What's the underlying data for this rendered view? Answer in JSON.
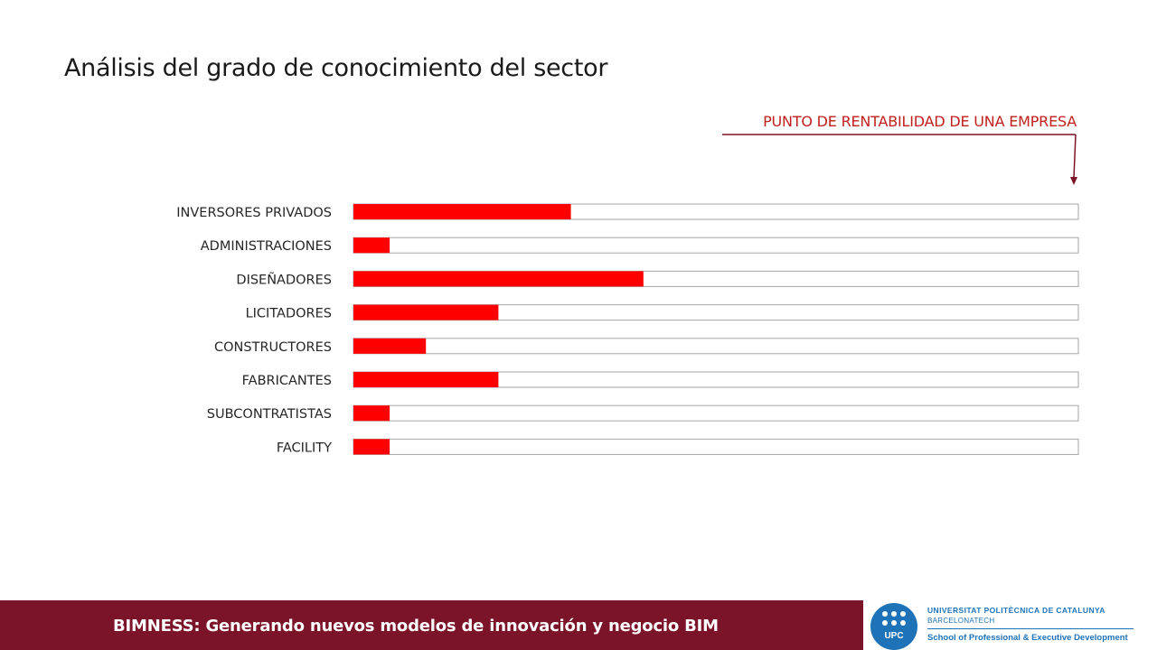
{
  "slide": {
    "title": "Análisis del grado de conocimiento del sector",
    "annotation": "PUNTO DE RENTABILIDAD DE UNA EMPRESA"
  },
  "colors": {
    "bar": "#ff0000",
    "track_border": "#a6a6a6",
    "annotation": "#c0201e",
    "arrow": "#7b1428",
    "footer_bg": "#7b1428",
    "logo_blue": "#1e73b8"
  },
  "chart_data": {
    "type": "bar",
    "orientation": "horizontal",
    "categories": [
      "INVERSORES PRIVADOS",
      "ADMINISTRACIONES",
      "DISEÑADORES",
      "LICITADORES",
      "CONSTRUCTORES",
      "FABRICANTES",
      "SUBCONTRATISTAS",
      "FACILITY"
    ],
    "values": [
      0.3,
      0.05,
      0.4,
      0.2,
      0.1,
      0.2,
      0.05,
      0.05
    ],
    "xlim": [
      0,
      1
    ],
    "grid": false
  },
  "footer": {
    "text": "BIMNESS: Generando nuevos modelos de innovación y negocio BIM",
    "logo": {
      "abbr": "UPC",
      "line1": "UNIVERSITAT POLITÈCNICA DE CATALUNYA",
      "line2": "BARCELONATECH",
      "line3": "School of Professional & Executive Development",
      "icon": "upc-logo-icon"
    }
  }
}
